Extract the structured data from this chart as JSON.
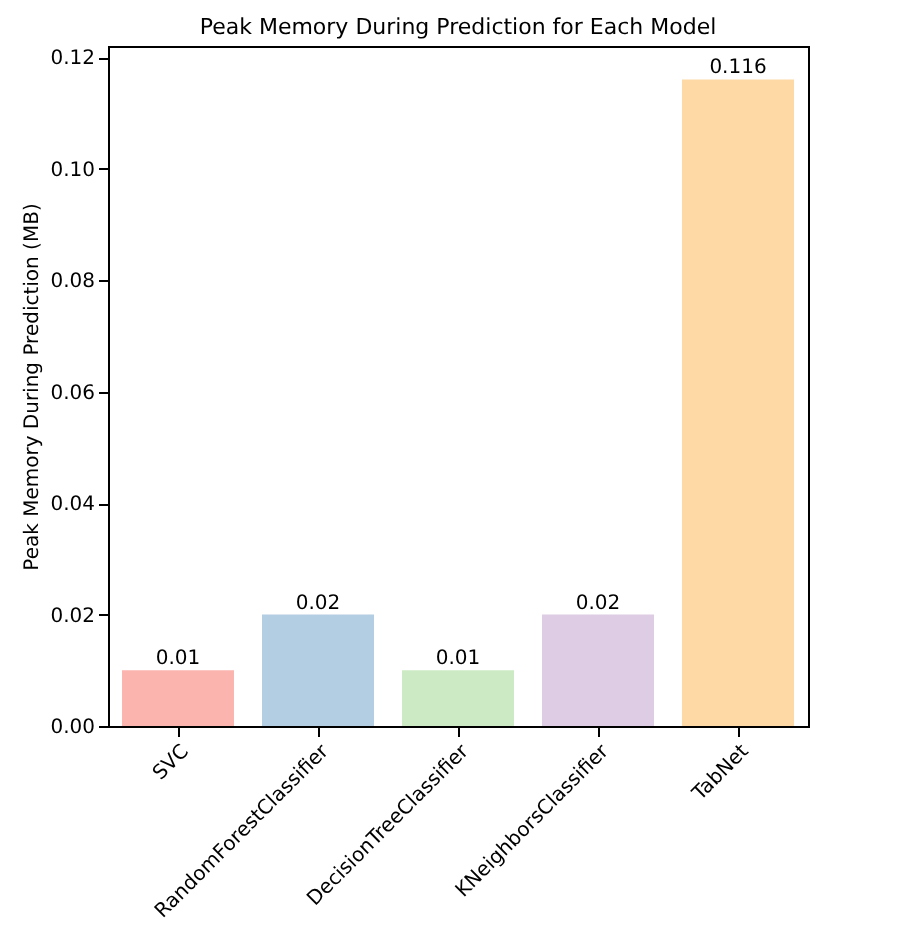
{
  "chart_data": {
    "type": "bar",
    "title": "Peak Memory During Prediction for Each Model",
    "ylabel": "Peak Memory During Prediction (MB)",
    "categories": [
      "SVC",
      "RandomForestClassifier",
      "DecisionTreeClassifier",
      "KNeighborsClassifier",
      "TabNet"
    ],
    "values": [
      0.01,
      0.02,
      0.01,
      0.02,
      0.116
    ],
    "colors": [
      "#fbb4ae",
      "#b3cde3",
      "#ccebc5",
      "#decbe4",
      "#fed9a6"
    ],
    "ylim": [
      0,
      0.122
    ],
    "yticks": [
      {
        "value": 0,
        "label": "0.00"
      },
      0.02,
      0.04,
      0.06,
      0.08,
      {
        "value": 0.1,
        "label": "0.10"
      },
      0.12
    ],
    "data_labels": true,
    "grid": false
  }
}
